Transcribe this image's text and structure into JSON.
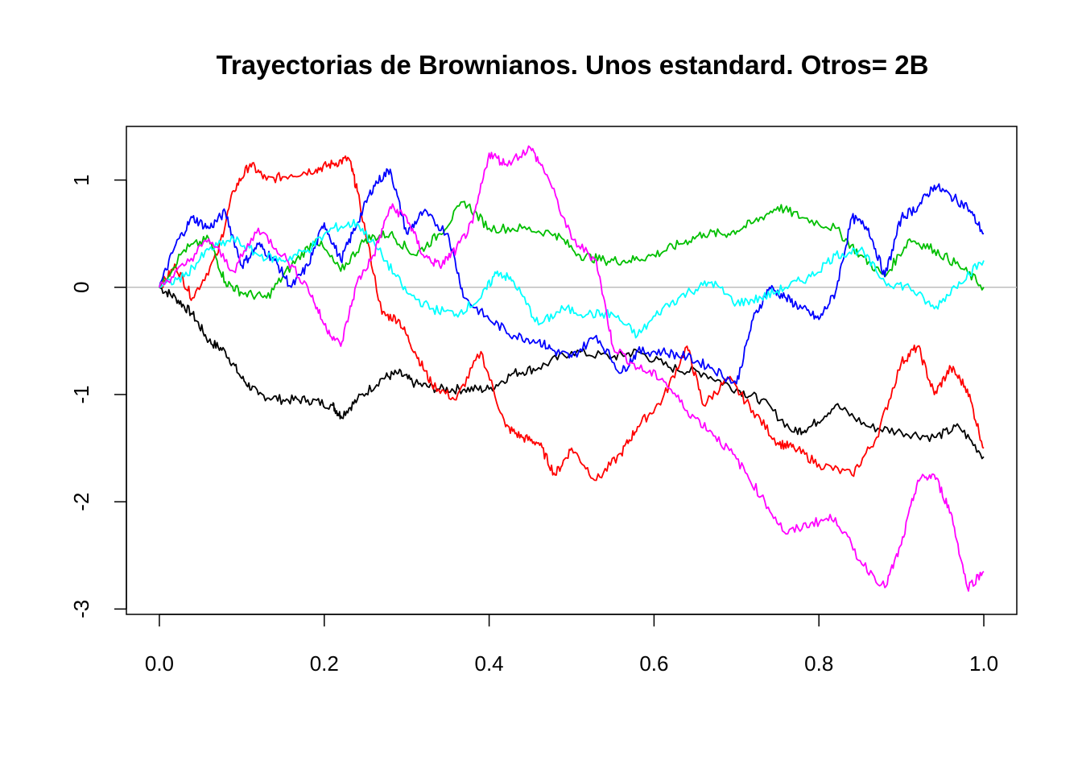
{
  "chart_data": {
    "type": "line",
    "title": "Trayectorias de Brownianos. Unos estandard. Otros= 2B",
    "xlabel": "",
    "ylabel": "",
    "xlim": [
      -0.04,
      1.04
    ],
    "ylim": [
      -3.05,
      1.5
    ],
    "x_ticks": [
      0.0,
      0.2,
      0.4,
      0.6,
      0.8,
      1.0
    ],
    "x_tick_labels": [
      "0.0",
      "0.2",
      "0.4",
      "0.6",
      "0.8",
      "1.0"
    ],
    "y_ticks": [
      -3,
      -2,
      -1,
      0,
      1
    ],
    "y_tick_labels": [
      "-3",
      "-2",
      "-1",
      "0",
      "1"
    ],
    "reference_line": {
      "y": 0,
      "color": "#bebebe"
    },
    "grid": false,
    "legend": "none",
    "series": [
      {
        "color": "#000000",
        "x": [
          0.0,
          0.02,
          0.04,
          0.06,
          0.08,
          0.1,
          0.12,
          0.15,
          0.18,
          0.21,
          0.22,
          0.24,
          0.27,
          0.29,
          0.31,
          0.34,
          0.37,
          0.4,
          0.43,
          0.46,
          0.5,
          0.55,
          0.58,
          0.62,
          0.66,
          0.7,
          0.73,
          0.77,
          0.79,
          0.82,
          0.86,
          0.9,
          0.94,
          0.97,
          1.0
        ],
        "y": [
          0.0,
          -0.1,
          -0.25,
          -0.5,
          -0.6,
          -0.85,
          -1.0,
          -1.05,
          -1.05,
          -1.1,
          -1.2,
          -1.05,
          -0.85,
          -0.8,
          -0.9,
          -0.95,
          -0.95,
          -0.95,
          -0.8,
          -0.75,
          -0.6,
          -0.65,
          -0.6,
          -0.75,
          -0.8,
          -0.95,
          -1.05,
          -1.35,
          -1.3,
          -1.1,
          -1.3,
          -1.35,
          -1.4,
          -1.3,
          -1.58
        ]
      },
      {
        "color": "#ff0000",
        "x": [
          0.0,
          0.02,
          0.04,
          0.07,
          0.09,
          0.11,
          0.13,
          0.16,
          0.19,
          0.21,
          0.23,
          0.24,
          0.27,
          0.29,
          0.31,
          0.33,
          0.36,
          0.39,
          0.42,
          0.44,
          0.46,
          0.48,
          0.5,
          0.53,
          0.56,
          0.58,
          0.61,
          0.64,
          0.66,
          0.69,
          0.72,
          0.75,
          0.77,
          0.8,
          0.84,
          0.87,
          0.9,
          0.92,
          0.94,
          0.96,
          0.98,
          1.0
        ],
        "y": [
          0.0,
          0.2,
          -0.1,
          0.3,
          0.9,
          1.15,
          1.0,
          1.05,
          1.1,
          1.15,
          1.2,
          0.9,
          -0.25,
          -0.3,
          -0.6,
          -0.9,
          -1.05,
          -0.6,
          -1.3,
          -1.4,
          -1.45,
          -1.75,
          -1.5,
          -1.8,
          -1.55,
          -1.3,
          -1.05,
          -0.55,
          -1.1,
          -0.85,
          -1.15,
          -1.45,
          -1.5,
          -1.65,
          -1.75,
          -1.4,
          -0.7,
          -0.55,
          -1.0,
          -0.75,
          -0.95,
          -1.5
        ]
      },
      {
        "color": "#00bf00",
        "x": [
          0.0,
          0.03,
          0.06,
          0.08,
          0.1,
          0.13,
          0.16,
          0.19,
          0.22,
          0.25,
          0.28,
          0.31,
          0.34,
          0.37,
          0.4,
          0.44,
          0.48,
          0.51,
          0.54,
          0.57,
          0.6,
          0.63,
          0.66,
          0.69,
          0.72,
          0.75,
          0.78,
          0.82,
          0.85,
          0.88,
          0.91,
          0.94,
          0.97,
          1.0
        ],
        "y": [
          0.0,
          0.35,
          0.45,
          0.05,
          -0.05,
          -0.1,
          0.2,
          0.45,
          0.15,
          0.45,
          0.5,
          0.3,
          0.5,
          0.8,
          0.55,
          0.55,
          0.5,
          0.3,
          0.25,
          0.25,
          0.3,
          0.4,
          0.5,
          0.5,
          0.6,
          0.75,
          0.65,
          0.55,
          0.3,
          0.1,
          0.45,
          0.35,
          0.2,
          0.0
        ]
      },
      {
        "color": "#0000ff",
        "x": [
          0.0,
          0.02,
          0.04,
          0.06,
          0.08,
          0.1,
          0.12,
          0.14,
          0.16,
          0.18,
          0.2,
          0.22,
          0.24,
          0.26,
          0.28,
          0.3,
          0.32,
          0.35,
          0.37,
          0.4,
          0.43,
          0.46,
          0.48,
          0.5,
          0.53,
          0.56,
          0.58,
          0.61,
          0.64,
          0.67,
          0.7,
          0.72,
          0.74,
          0.76,
          0.78,
          0.8,
          0.82,
          0.84,
          0.86,
          0.88,
          0.9,
          0.92,
          0.94,
          0.96,
          0.98,
          1.0
        ],
        "y": [
          0.0,
          0.4,
          0.65,
          0.55,
          0.7,
          0.2,
          0.4,
          0.25,
          0.0,
          0.2,
          0.6,
          0.25,
          0.6,
          0.95,
          1.1,
          0.5,
          0.7,
          0.5,
          -0.1,
          -0.3,
          -0.45,
          -0.5,
          -0.6,
          -0.65,
          -0.45,
          -0.8,
          -0.6,
          -0.6,
          -0.65,
          -0.75,
          -0.9,
          -0.3,
          0.0,
          -0.1,
          -0.2,
          -0.3,
          -0.05,
          0.65,
          0.55,
          0.1,
          0.65,
          0.75,
          0.95,
          0.85,
          0.75,
          0.5
        ]
      },
      {
        "color": "#00ffff",
        "x": [
          0.0,
          0.03,
          0.06,
          0.09,
          0.12,
          0.15,
          0.18,
          0.21,
          0.24,
          0.27,
          0.3,
          0.33,
          0.36,
          0.39,
          0.41,
          0.43,
          0.46,
          0.49,
          0.52,
          0.55,
          0.58,
          0.61,
          0.64,
          0.67,
          0.7,
          0.73,
          0.76,
          0.79,
          0.82,
          0.85,
          0.88,
          0.91,
          0.94,
          0.97,
          1.0
        ],
        "y": [
          0.0,
          0.1,
          0.35,
          0.45,
          0.3,
          0.25,
          0.35,
          0.55,
          0.6,
          0.3,
          -0.05,
          -0.2,
          -0.25,
          -0.1,
          0.15,
          0.05,
          -0.35,
          -0.2,
          -0.25,
          -0.25,
          -0.45,
          -0.2,
          -0.05,
          0.05,
          -0.15,
          -0.1,
          0.0,
          0.1,
          0.3,
          0.35,
          0.05,
          0.0,
          -0.2,
          0.05,
          0.25
        ]
      },
      {
        "color": "#ff00ff",
        "x": [
          0.0,
          0.03,
          0.06,
          0.09,
          0.12,
          0.15,
          0.18,
          0.2,
          0.22,
          0.24,
          0.26,
          0.28,
          0.3,
          0.32,
          0.34,
          0.36,
          0.38,
          0.4,
          0.42,
          0.45,
          0.47,
          0.5,
          0.53,
          0.55,
          0.58,
          0.61,
          0.64,
          0.67,
          0.7,
          0.73,
          0.76,
          0.79,
          0.82,
          0.85,
          0.88,
          0.9,
          0.92,
          0.94,
          0.96,
          0.98,
          1.0
        ],
        "y": [
          0.0,
          0.2,
          0.45,
          0.15,
          0.55,
          0.3,
          0.0,
          -0.35,
          -0.55,
          0.05,
          0.3,
          0.75,
          0.65,
          0.3,
          0.2,
          0.35,
          0.6,
          1.25,
          1.15,
          1.3,
          1.05,
          0.45,
          0.25,
          -0.55,
          -0.75,
          -0.85,
          -1.15,
          -1.35,
          -1.6,
          -1.95,
          -2.3,
          -2.2,
          -2.15,
          -2.55,
          -2.8,
          -2.4,
          -1.8,
          -1.75,
          -2.1,
          -2.8,
          -2.65
        ]
      }
    ]
  }
}
